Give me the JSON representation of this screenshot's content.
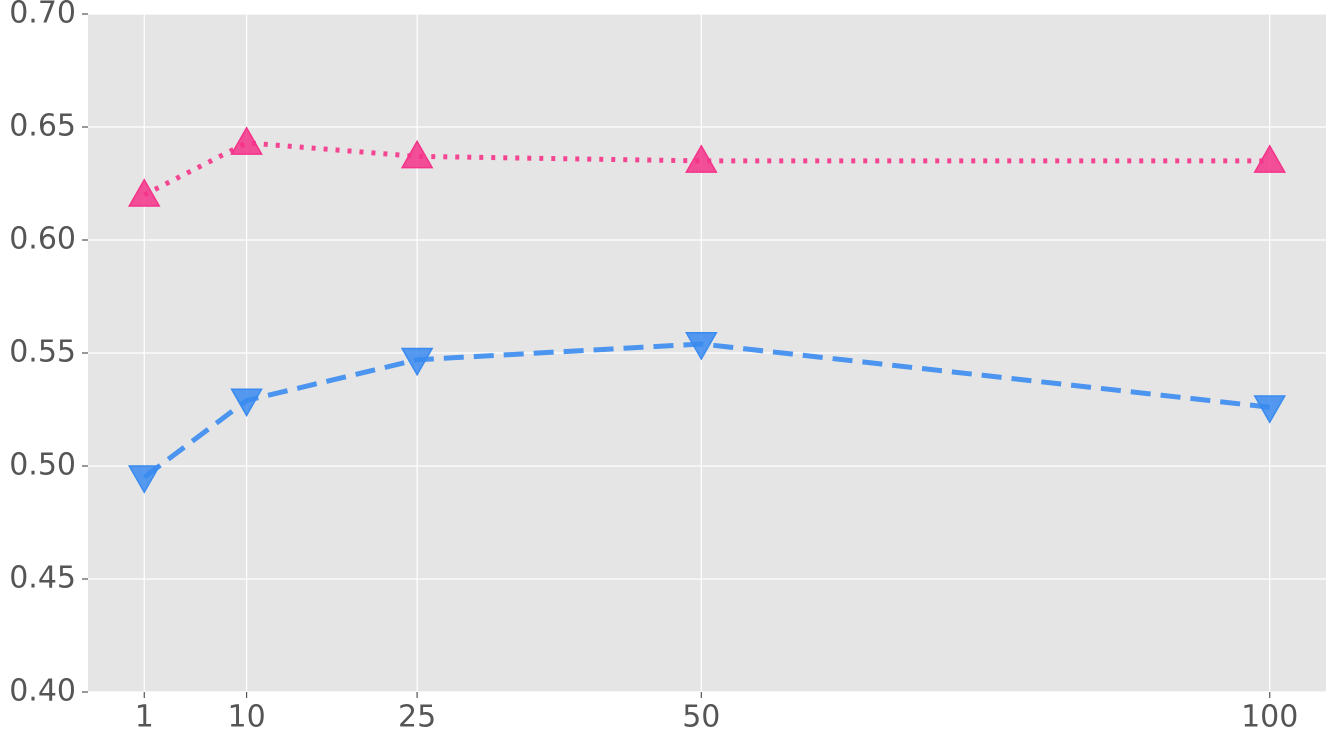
{
  "chart_data": {
    "type": "line",
    "x": [
      1,
      10,
      25,
      50,
      100
    ],
    "series": [
      {
        "color": "#f5338a",
        "linestyle": "dotted",
        "marker": "triangle-up",
        "values": [
          0.62,
          0.643,
          0.637,
          0.635,
          0.635
        ]
      },
      {
        "color": "#3a8bf0",
        "linestyle": "dashed",
        "marker": "triangle-down",
        "values": [
          0.495,
          0.529,
          0.547,
          0.554,
          0.526
        ]
      }
    ],
    "xlim": [
      -3.95,
      104.95
    ],
    "xticks": [
      1,
      10,
      25,
      50,
      100
    ],
    "ylim": [
      0.4,
      0.7
    ],
    "yticks": [
      {
        "value": 0.4,
        "label": "0.40"
      },
      0.45,
      {
        "value": 0.5,
        "label": "0.50"
      },
      0.55,
      {
        "value": 0.6,
        "label": "0.60"
      },
      0.65,
      {
        "value": 0.7,
        "label": "0.70"
      }
    ],
    "grid": true
  }
}
